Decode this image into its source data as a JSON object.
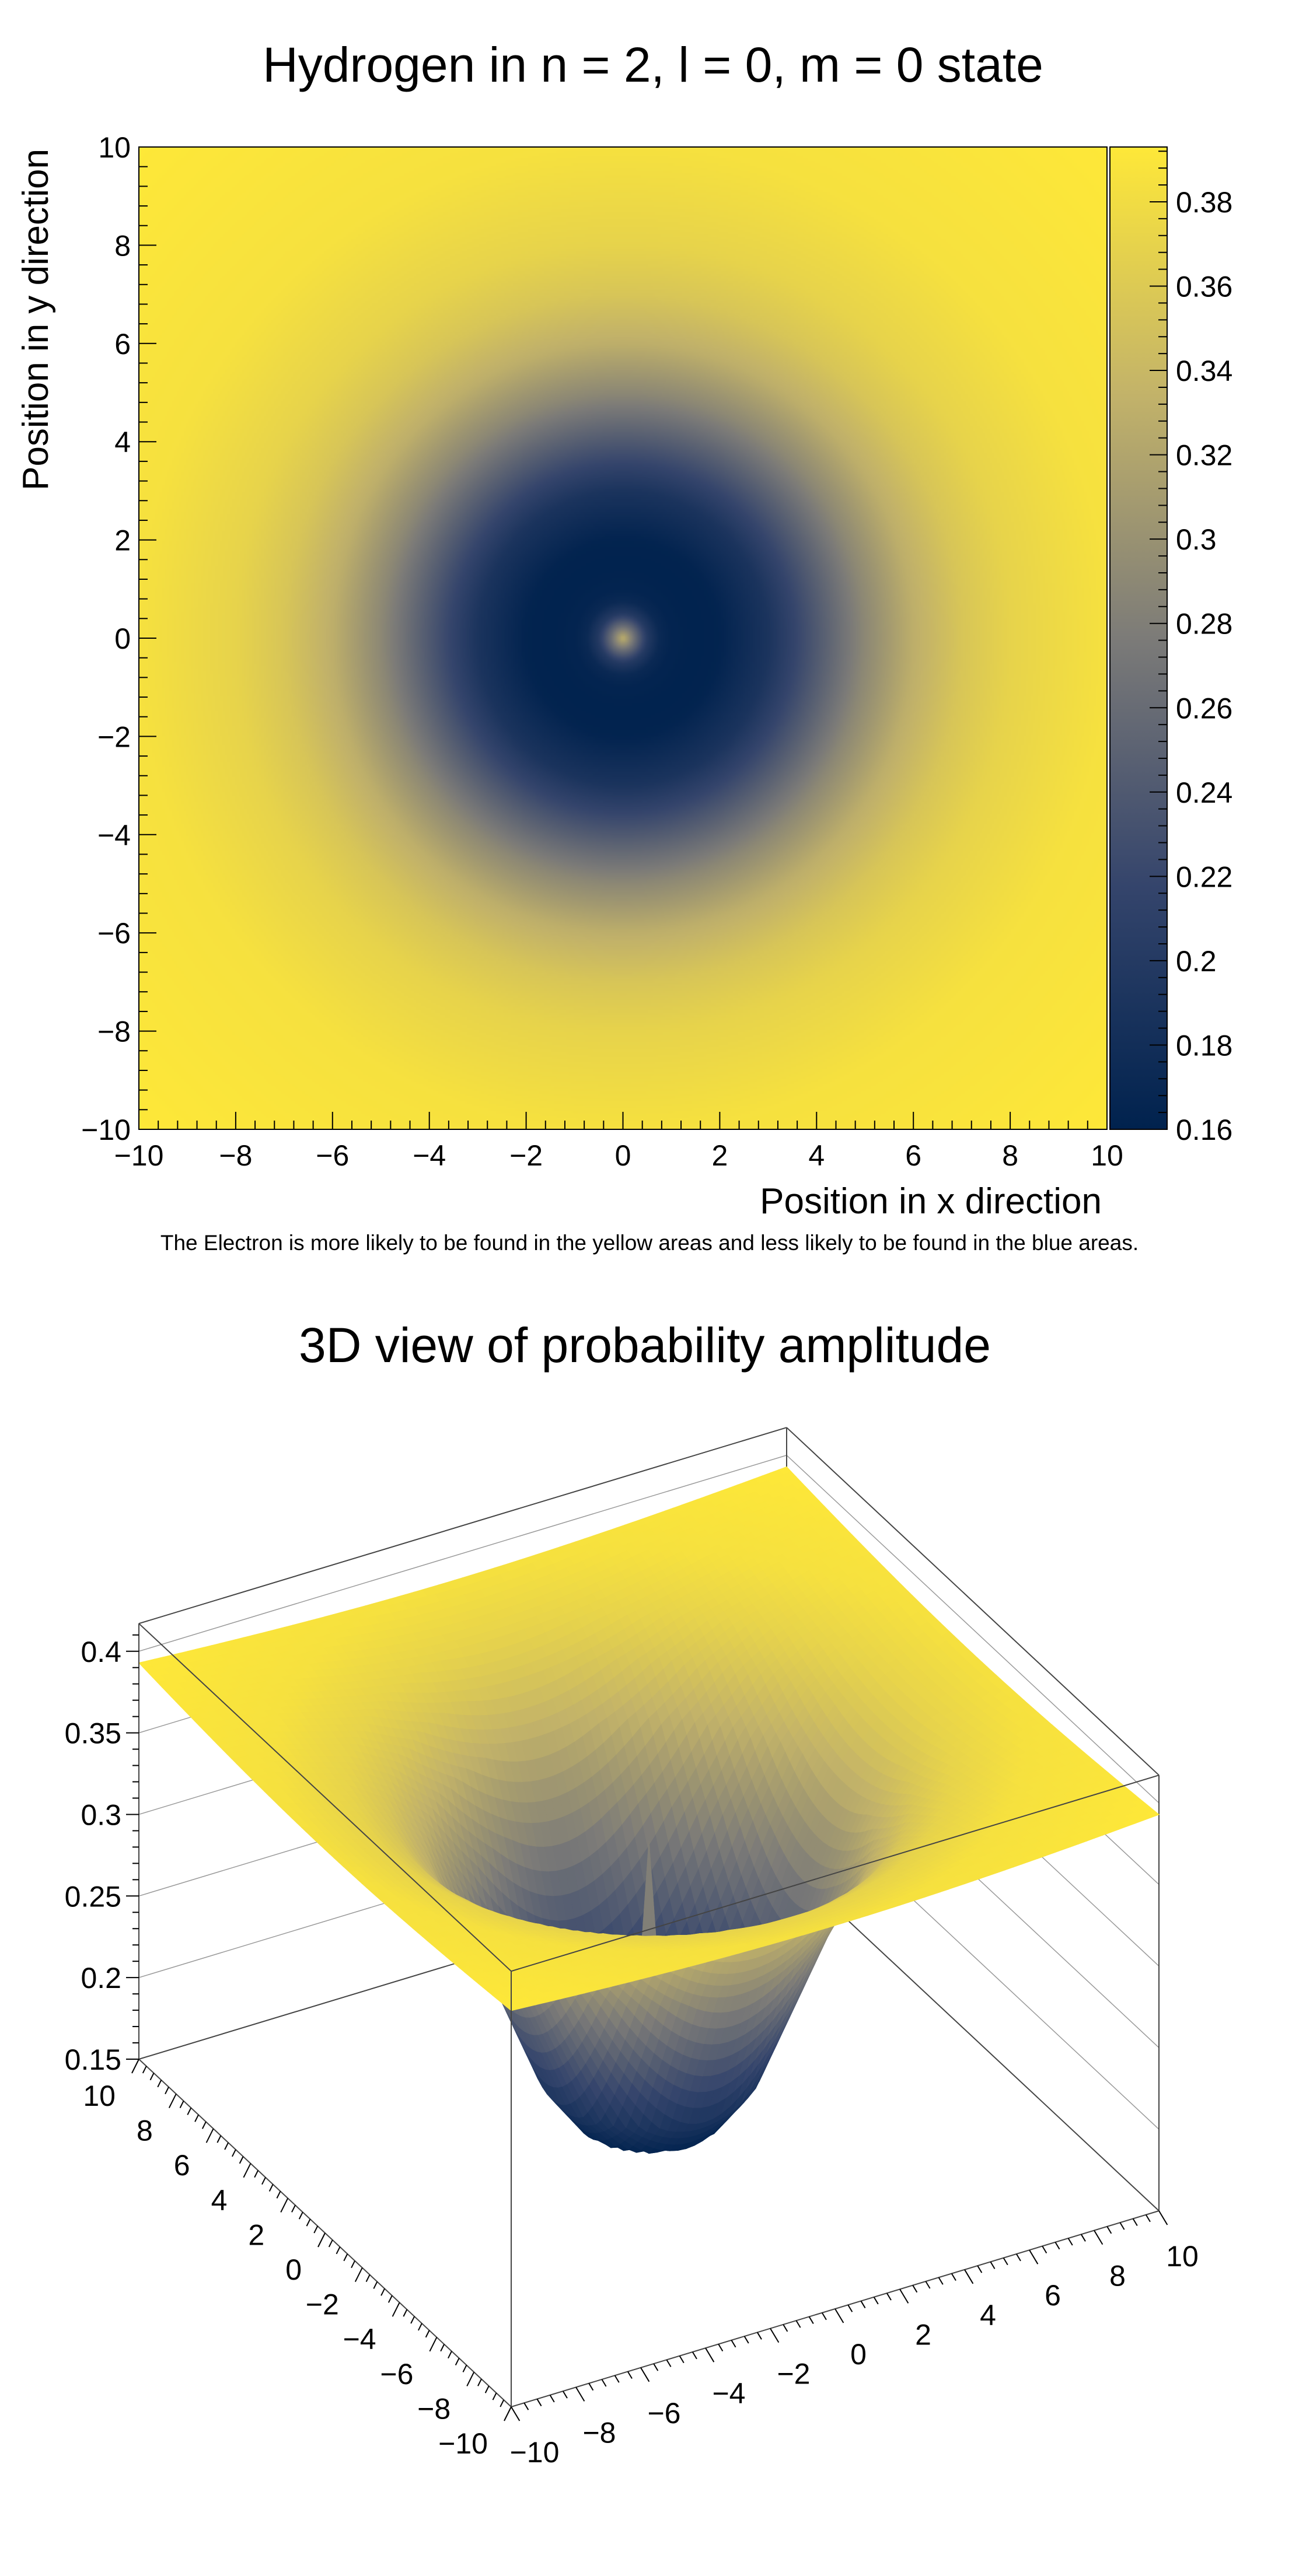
{
  "chart_data": [
    {
      "type": "heatmap",
      "title": "Hydrogen in n = 2, l = 0, m = 0 state",
      "xlabel": "Position in x direction",
      "ylabel": "Position in y direction",
      "xlim": [
        -10,
        10
      ],
      "ylim": [
        -10,
        10
      ],
      "xticks": [
        -10,
        -8,
        -6,
        -4,
        -2,
        0,
        2,
        4,
        6,
        8,
        10
      ],
      "xtick_labels": [
        "−10",
        "−8",
        "−6",
        "−4",
        "−2",
        "0",
        "2",
        "4",
        "6",
        "8",
        "10"
      ],
      "yticks": [
        -10,
        -8,
        -6,
        -4,
        -2,
        0,
        2,
        4,
        6,
        8,
        10
      ],
      "ytick_labels": [
        "−10",
        "−8",
        "−6",
        "−4",
        "−2",
        "0",
        "2",
        "4",
        "6",
        "8",
        "10"
      ],
      "colorbar": {
        "range": [
          0.16,
          0.393
        ],
        "ticks": [
          0.16,
          0.18,
          0.2,
          0.22,
          0.24,
          0.26,
          0.28,
          0.3,
          0.32,
          0.34,
          0.36,
          0.38
        ],
        "tick_labels": [
          "0.16",
          "0.18",
          "0.2",
          "0.22",
          "0.24",
          "0.26",
          "0.28",
          "0.3",
          "0.32",
          "0.34",
          "0.36",
          "0.38"
        ]
      },
      "palette": [
        "#00224e",
        "#35456c",
        "#7c7b78",
        "#c3b369",
        "#fee838"
      ],
      "radial_profile": {
        "r": [
          0,
          0.25,
          0.5,
          0.75,
          1.0,
          1.5,
          2.0,
          3.0,
          4.0,
          5.0,
          6.0,
          7.0,
          8.0,
          10.0,
          14.2
        ],
        "value": [
          0.33,
          0.26,
          0.2,
          0.172,
          0.164,
          0.161,
          0.163,
          0.19,
          0.24,
          0.29,
          0.33,
          0.355,
          0.37,
          0.385,
          0.393
        ]
      },
      "caption": "The Electron is more likely to be found in the yellow areas and less likely to be found in the blue areas."
    },
    {
      "type": "surface",
      "title": "3D view of probability amplitude",
      "xlim": [
        -10,
        10
      ],
      "ylim": [
        -10,
        10
      ],
      "zlim": [
        0.15,
        0.417
      ],
      "xticks": [
        -10,
        -8,
        -6,
        -4,
        -2,
        0,
        2,
        4,
        6,
        8,
        10
      ],
      "xtick_labels": [
        "−10",
        "−8",
        "−6",
        "−4",
        "−2",
        "0",
        "2",
        "4",
        "6",
        "8",
        "10"
      ],
      "yticks": [
        -10,
        -8,
        -6,
        -4,
        -2,
        0,
        2,
        4,
        6,
        8,
        10
      ],
      "ytick_labels": [
        "−10",
        "−8",
        "−6",
        "−4",
        "−2",
        "0",
        "2",
        "4",
        "6",
        "8",
        "10"
      ],
      "zticks": [
        0.15,
        0.2,
        0.25,
        0.3,
        0.35,
        0.4
      ],
      "ztick_labels": [
        "0.15",
        "0.2",
        "0.25",
        "0.3",
        "0.35",
        "0.4"
      ],
      "grid": true
    }
  ]
}
